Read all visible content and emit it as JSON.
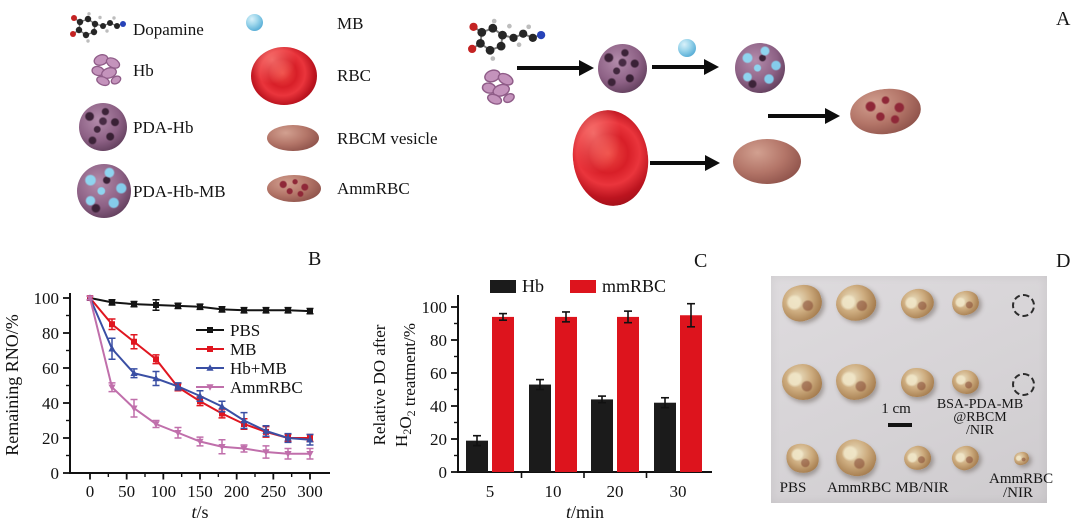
{
  "figure": {
    "panel_labels": {
      "a": "A",
      "b": "B",
      "c": "C",
      "d": "D"
    }
  },
  "legend": {
    "items": [
      {
        "icon": "dopamine-icon",
        "label": "Dopamine"
      },
      {
        "icon": "hb-icon",
        "label": "Hb"
      },
      {
        "icon": "pda-hb-icon",
        "label": "PDA-Hb"
      },
      {
        "icon": "pda-hb-mb-icon",
        "label": "PDA-Hb-MB"
      },
      {
        "icon": "mb-icon",
        "label": "MB"
      },
      {
        "icon": "rbc-icon",
        "label": "RBC"
      },
      {
        "icon": "rbcm-vesicle-icon",
        "label": "RBCM vesicle"
      },
      {
        "icon": "ammrbc-icon",
        "label": "AmmRBC"
      }
    ]
  },
  "chart_data": [
    {
      "id": "rno-line-chart",
      "type": "line",
      "title": "",
      "xlabel": "t/s",
      "ylabel": "Remaining RNO/%",
      "x": [
        0,
        30,
        60,
        90,
        120,
        150,
        180,
        210,
        240,
        270,
        300
      ],
      "xticks": [
        0,
        50,
        100,
        150,
        200,
        250,
        300
      ],
      "yticks": [
        0,
        20,
        40,
        60,
        80,
        100
      ],
      "xlim": [
        -27,
        327
      ],
      "ylim": [
        0,
        103
      ],
      "grid": false,
      "legend_position": "center-right",
      "series": [
        {
          "name": "PBS",
          "color": "#141414",
          "marker": "square",
          "values": [
            100,
            97.5,
            96.5,
            96,
            95.5,
            95,
            93.5,
            93,
            93,
            93,
            92.5
          ],
          "errors": [
            1,
            1.5,
            1.5,
            3,
            1.5,
            1.5,
            1.5,
            1.5,
            1.5,
            1.5,
            1.5
          ]
        },
        {
          "name": "MB",
          "color": "#e01620",
          "marker": "square",
          "values": [
            100,
            85,
            75,
            65,
            49,
            41,
            34,
            28,
            23.5,
            20,
            20
          ],
          "errors": [
            1,
            3,
            4,
            2.5,
            2,
            2.5,
            2.5,
            3,
            3,
            2,
            2
          ]
        },
        {
          "name": "Hb+MB",
          "color": "#3a4fa4",
          "marker": "triangle-up",
          "values": [
            100,
            71,
            57,
            54,
            49.5,
            44,
            38,
            30,
            24,
            20,
            19
          ],
          "errors": [
            1,
            6,
            2.5,
            4,
            2,
            3,
            3,
            4.5,
            3,
            2.5,
            3
          ]
        },
        {
          "name": "AmmRBC",
          "color": "#c06fab",
          "marker": "triangle-down",
          "values": [
            100,
            49,
            37,
            28,
            23,
            18,
            15,
            14,
            12,
            11,
            11
          ],
          "errors": [
            1,
            2.5,
            5,
            2,
            3,
            2.5,
            4,
            2,
            3.5,
            3,
            3
          ]
        }
      ]
    },
    {
      "id": "do-bar-chart",
      "type": "bar",
      "title": "",
      "xlabel": "t/min",
      "ylabel_lines": [
        "Relative DO after",
        "H₂O₂ treatment/%"
      ],
      "categories": [
        "5",
        "10",
        "20",
        "30"
      ],
      "yticks": [
        0,
        20,
        40,
        60,
        80,
        100
      ],
      "ylim": [
        0,
        107
      ],
      "grid": false,
      "legend_position": "top",
      "series": [
        {
          "name": "Hb",
          "color": "#1b1b1b",
          "values": [
            19,
            53,
            44,
            42
          ],
          "errors": [
            3,
            3,
            2,
            3
          ]
        },
        {
          "name": "mmRBC",
          "color": "#dd141d",
          "values": [
            94,
            94,
            94,
            95
          ],
          "errors": [
            2,
            3,
            3.5,
            7
          ]
        }
      ]
    }
  ],
  "photo": {
    "scale_bar_label": "1 cm",
    "bottom_labels": [
      "PBS",
      "AmmRBC",
      "MB/NIR"
    ],
    "annotation_lines": [
      "BSA-PDA-MB",
      "@RBCM",
      "/NIR"
    ],
    "last_group_lines": [
      "AmmRBC",
      "/NIR"
    ],
    "grid": [
      [
        "lg",
        "lg",
        "md",
        "sm",
        "dashed"
      ],
      [
        "lg",
        "lg",
        "md",
        "sm",
        "dashed"
      ],
      [
        "md",
        "lg",
        "sm",
        "sm",
        "xs"
      ]
    ]
  }
}
